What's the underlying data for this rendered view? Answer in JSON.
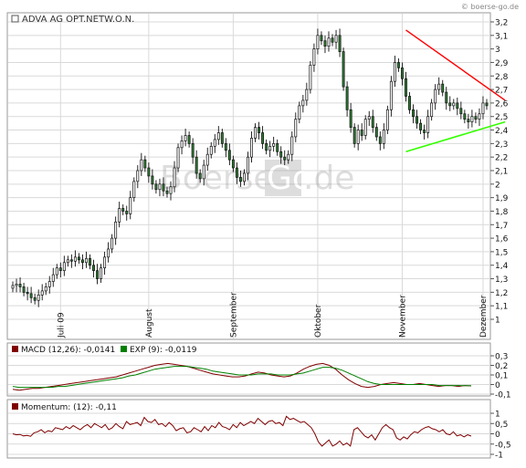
{
  "watermark_top": "© boerse-go.de",
  "logo_text": {
    "part1": "Boerse",
    "part2": "Go",
    "part3": ".de"
  },
  "colors": {
    "candle_fill": "#2e7d32",
    "candle_stroke": "#111111",
    "grid": "#d9d9d9",
    "resistance": "#ff0000",
    "support": "#33ff00",
    "macd": "#800000",
    "exp": "#008000",
    "momentum": "#800000",
    "legend_box_macd": "#800000",
    "legend_box_exp": "#008000"
  },
  "chart_data": [
    {
      "type": "candlestick",
      "title": "ADVA AG OPT.NETW.O.N.",
      "ylim": [
        1.0,
        3.2
      ],
      "y_ticks": [
        "1",
        "1,1",
        "1,2",
        "1,3",
        "1,4",
        "1,5",
        "1,6",
        "1,7",
        "1,8",
        "1,9",
        "2",
        "2,1",
        "2,2",
        "2,3",
        "2,4",
        "2,5",
        "2,6",
        "2,7",
        "2,8",
        "2,9",
        "3",
        "3,1",
        "3,2"
      ],
      "x_labels": [
        {
          "label": "Juli 09",
          "index": 13
        },
        {
          "label": "August",
          "index": 37
        },
        {
          "label": "September",
          "index": 60
        },
        {
          "label": "Oktober",
          "index": 83
        },
        {
          "label": "November",
          "index": 106
        },
        {
          "label": "Dezember",
          "index": 128
        }
      ],
      "close": [
        1.25,
        1.26,
        1.24,
        1.2,
        1.19,
        1.16,
        1.14,
        1.18,
        1.21,
        1.24,
        1.28,
        1.33,
        1.38,
        1.36,
        1.42,
        1.44,
        1.43,
        1.46,
        1.44,
        1.42,
        1.45,
        1.4,
        1.36,
        1.3,
        1.38,
        1.46,
        1.52,
        1.6,
        1.72,
        1.82,
        1.8,
        1.78,
        1.9,
        2.02,
        2.1,
        2.18,
        2.12,
        2.06,
        2.0,
        1.96,
        2.0,
        1.95,
        1.93,
        1.98,
        2.12,
        2.27,
        2.32,
        2.36,
        2.3,
        2.2,
        2.08,
        2.04,
        2.14,
        2.22,
        2.28,
        2.33,
        2.38,
        2.3,
        2.25,
        2.18,
        2.12,
        2.05,
        2.02,
        2.08,
        2.2,
        2.34,
        2.42,
        2.38,
        2.3,
        2.25,
        2.28,
        2.3,
        2.24,
        2.2,
        2.18,
        2.22,
        2.35,
        2.48,
        2.58,
        2.62,
        2.7,
        2.88,
        3.0,
        3.1,
        3.06,
        3.02,
        3.08,
        3.05,
        3.1,
        2.98,
        2.72,
        2.55,
        2.42,
        2.3,
        2.4,
        2.36,
        2.48,
        2.5,
        2.42,
        2.35,
        2.3,
        2.4,
        2.55,
        2.76,
        2.9,
        2.86,
        2.78,
        2.65,
        2.55,
        2.5,
        2.45,
        2.4,
        2.38,
        2.5,
        2.6,
        2.7,
        2.74,
        2.68,
        2.6,
        2.58,
        2.6,
        2.56,
        2.52,
        2.48,
        2.46,
        2.5,
        2.48,
        2.52,
        2.6,
        2.58
      ],
      "resistance_line": {
        "start": [
          107,
          3.14
        ],
        "end": [
          133,
          2.62
        ]
      },
      "support_line": {
        "start": [
          107,
          2.24
        ],
        "end": [
          133,
          2.46
        ]
      }
    },
    {
      "type": "line",
      "legend": [
        {
          "label": "MACD (12,26): -0,0141"
        },
        {
          "label": "EXP (9): -0,0119"
        }
      ],
      "ylim": [
        -0.1,
        0.3
      ],
      "y_ticks": [
        "0,3",
        "0,2",
        "0,1",
        "0",
        "-0,1"
      ],
      "series": [
        {
          "name": "MACD (12,26)",
          "values": [
            -0.05,
            -0.06,
            -0.05,
            -0.04,
            -0.04,
            -0.03,
            -0.02,
            -0.01,
            0.0,
            0.01,
            0.02,
            0.03,
            0.04,
            0.05,
            0.06,
            0.07,
            0.08,
            0.1,
            0.12,
            0.14,
            0.16,
            0.18,
            0.2,
            0.21,
            0.22,
            0.21,
            0.2,
            0.19,
            0.17,
            0.15,
            0.13,
            0.11,
            0.1,
            0.09,
            0.08,
            0.08,
            0.09,
            0.11,
            0.13,
            0.12,
            0.1,
            0.09,
            0.08,
            0.09,
            0.12,
            0.16,
            0.19,
            0.21,
            0.22,
            0.2,
            0.16,
            0.1,
            0.05,
            0.01,
            -0.02,
            -0.03,
            -0.02,
            0.0,
            0.01,
            0.02,
            0.01,
            0.0,
            0.0,
            0.01,
            0.0,
            -0.01,
            -0.02,
            -0.01,
            -0.01,
            -0.02,
            -0.01,
            -0.014
          ]
        },
        {
          "name": "EXP (9)",
          "values": [
            -0.02,
            -0.03,
            -0.03,
            -0.03,
            -0.03,
            -0.03,
            -0.03,
            -0.02,
            -0.02,
            -0.01,
            0.0,
            0.01,
            0.02,
            0.03,
            0.04,
            0.05,
            0.06,
            0.07,
            0.09,
            0.1,
            0.12,
            0.14,
            0.16,
            0.17,
            0.18,
            0.19,
            0.19,
            0.19,
            0.18,
            0.17,
            0.16,
            0.14,
            0.13,
            0.12,
            0.11,
            0.1,
            0.1,
            0.1,
            0.11,
            0.11,
            0.11,
            0.1,
            0.1,
            0.1,
            0.11,
            0.12,
            0.14,
            0.16,
            0.18,
            0.18,
            0.17,
            0.15,
            0.12,
            0.09,
            0.06,
            0.03,
            0.01,
            0.0,
            0.0,
            0.0,
            0.0,
            0.0,
            0.0,
            0.0,
            0.0,
            0.0,
            -0.01,
            -0.01,
            -0.01,
            -0.01,
            -0.012,
            -0.012
          ]
        }
      ]
    },
    {
      "type": "line",
      "legend": [
        {
          "label": "Momentum: (12): -0,11"
        }
      ],
      "ylim": [
        -1.0,
        1.0
      ],
      "y_ticks": [
        "1",
        "0,5",
        "0",
        "-0,5",
        "-1"
      ],
      "series": [
        {
          "name": "Momentum: (12)",
          "values": [
            0.0,
            -0.05,
            -0.03,
            -0.1,
            -0.08,
            -0.12,
            0.05,
            0.1,
            0.2,
            0.05,
            0.15,
            0.1,
            0.3,
            0.25,
            0.2,
            0.35,
            0.25,
            0.4,
            0.3,
            0.2,
            0.35,
            0.45,
            0.3,
            0.5,
            0.4,
            0.3,
            0.45,
            0.2,
            0.3,
            0.5,
            0.35,
            0.25,
            0.6,
            0.45,
            0.5,
            0.55,
            0.4,
            0.8,
            0.6,
            0.55,
            0.7,
            0.45,
            0.5,
            0.35,
            0.55,
            0.4,
            0.15,
            0.25,
            0.3,
            0.05,
            0.1,
            0.3,
            0.2,
            0.1,
            0.35,
            0.15,
            0.4,
            0.3,
            0.55,
            0.35,
            0.3,
            0.2,
            0.45,
            0.3,
            0.55,
            0.4,
            0.5,
            0.6,
            0.5,
            0.75,
            0.6,
            0.45,
            0.6,
            0.65,
            0.5,
            0.55,
            0.4,
            0.85,
            0.7,
            0.75,
            0.65,
            0.55,
            0.6,
            0.45,
            0.3,
            0.0,
            -0.4,
            -0.6,
            -0.45,
            -0.3,
            -0.6,
            -0.5,
            -0.35,
            -0.55,
            -0.45,
            -0.6,
            0.2,
            0.3,
            0.1,
            -0.1,
            -0.2,
            -0.05,
            -0.3,
            0.0,
            0.3,
            0.45,
            0.3,
            0.2,
            -0.2,
            -0.3,
            -0.15,
            -0.25,
            -0.05,
            0.1,
            0.05,
            0.2,
            0.3,
            0.35,
            0.25,
            0.2,
            0.1,
            0.2,
            0.0,
            -0.05,
            0.1,
            -0.1,
            -0.05,
            -0.15,
            -0.05,
            -0.11
          ]
        }
      ]
    }
  ]
}
